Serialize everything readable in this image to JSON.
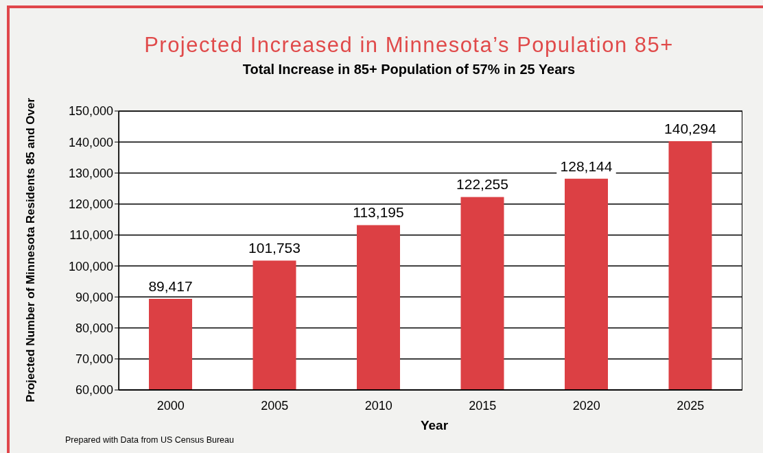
{
  "chart_data": {
    "type": "bar",
    "title": "Projected Increased in Minnesota’s Population 85+",
    "subtitle": "Total Increase in 85+ Population of 57% in 25 Years",
    "xlabel": "Year",
    "ylabel": "Projected Number of Minnesota Residents 85 and Over",
    "annotations": [
      "Prepared with Data from US Census Bureau"
    ],
    "categories": [
      "2000",
      "2005",
      "2010",
      "2015",
      "2020",
      "2025"
    ],
    "values": [
      89417,
      101753,
      113195,
      122255,
      128144,
      140294
    ],
    "color": "#dc4044",
    "ylim": [
      60000,
      150000
    ],
    "yticks": [
      {
        "value": 60000,
        "label": "60,000"
      },
      {
        "value": 70000,
        "label": "70,000"
      },
      {
        "value": 80000,
        "label": "80,000"
      },
      {
        "value": 90000,
        "label": "90,000"
      },
      {
        "value": 100000,
        "label": "100,000"
      },
      {
        "value": 110000,
        "label": "110,000"
      },
      {
        "value": 120000,
        "label": "120,000"
      },
      {
        "value": 130000,
        "label": "130,000"
      },
      {
        "value": 140000,
        "label": "140,000"
      },
      {
        "value": 150000,
        "label": "150,000"
      }
    ],
    "value_labels": [
      "89,417",
      "101,753",
      "113,195",
      "122,255",
      "128,144",
      "140,294"
    ],
    "grid": "y",
    "legend": false
  }
}
